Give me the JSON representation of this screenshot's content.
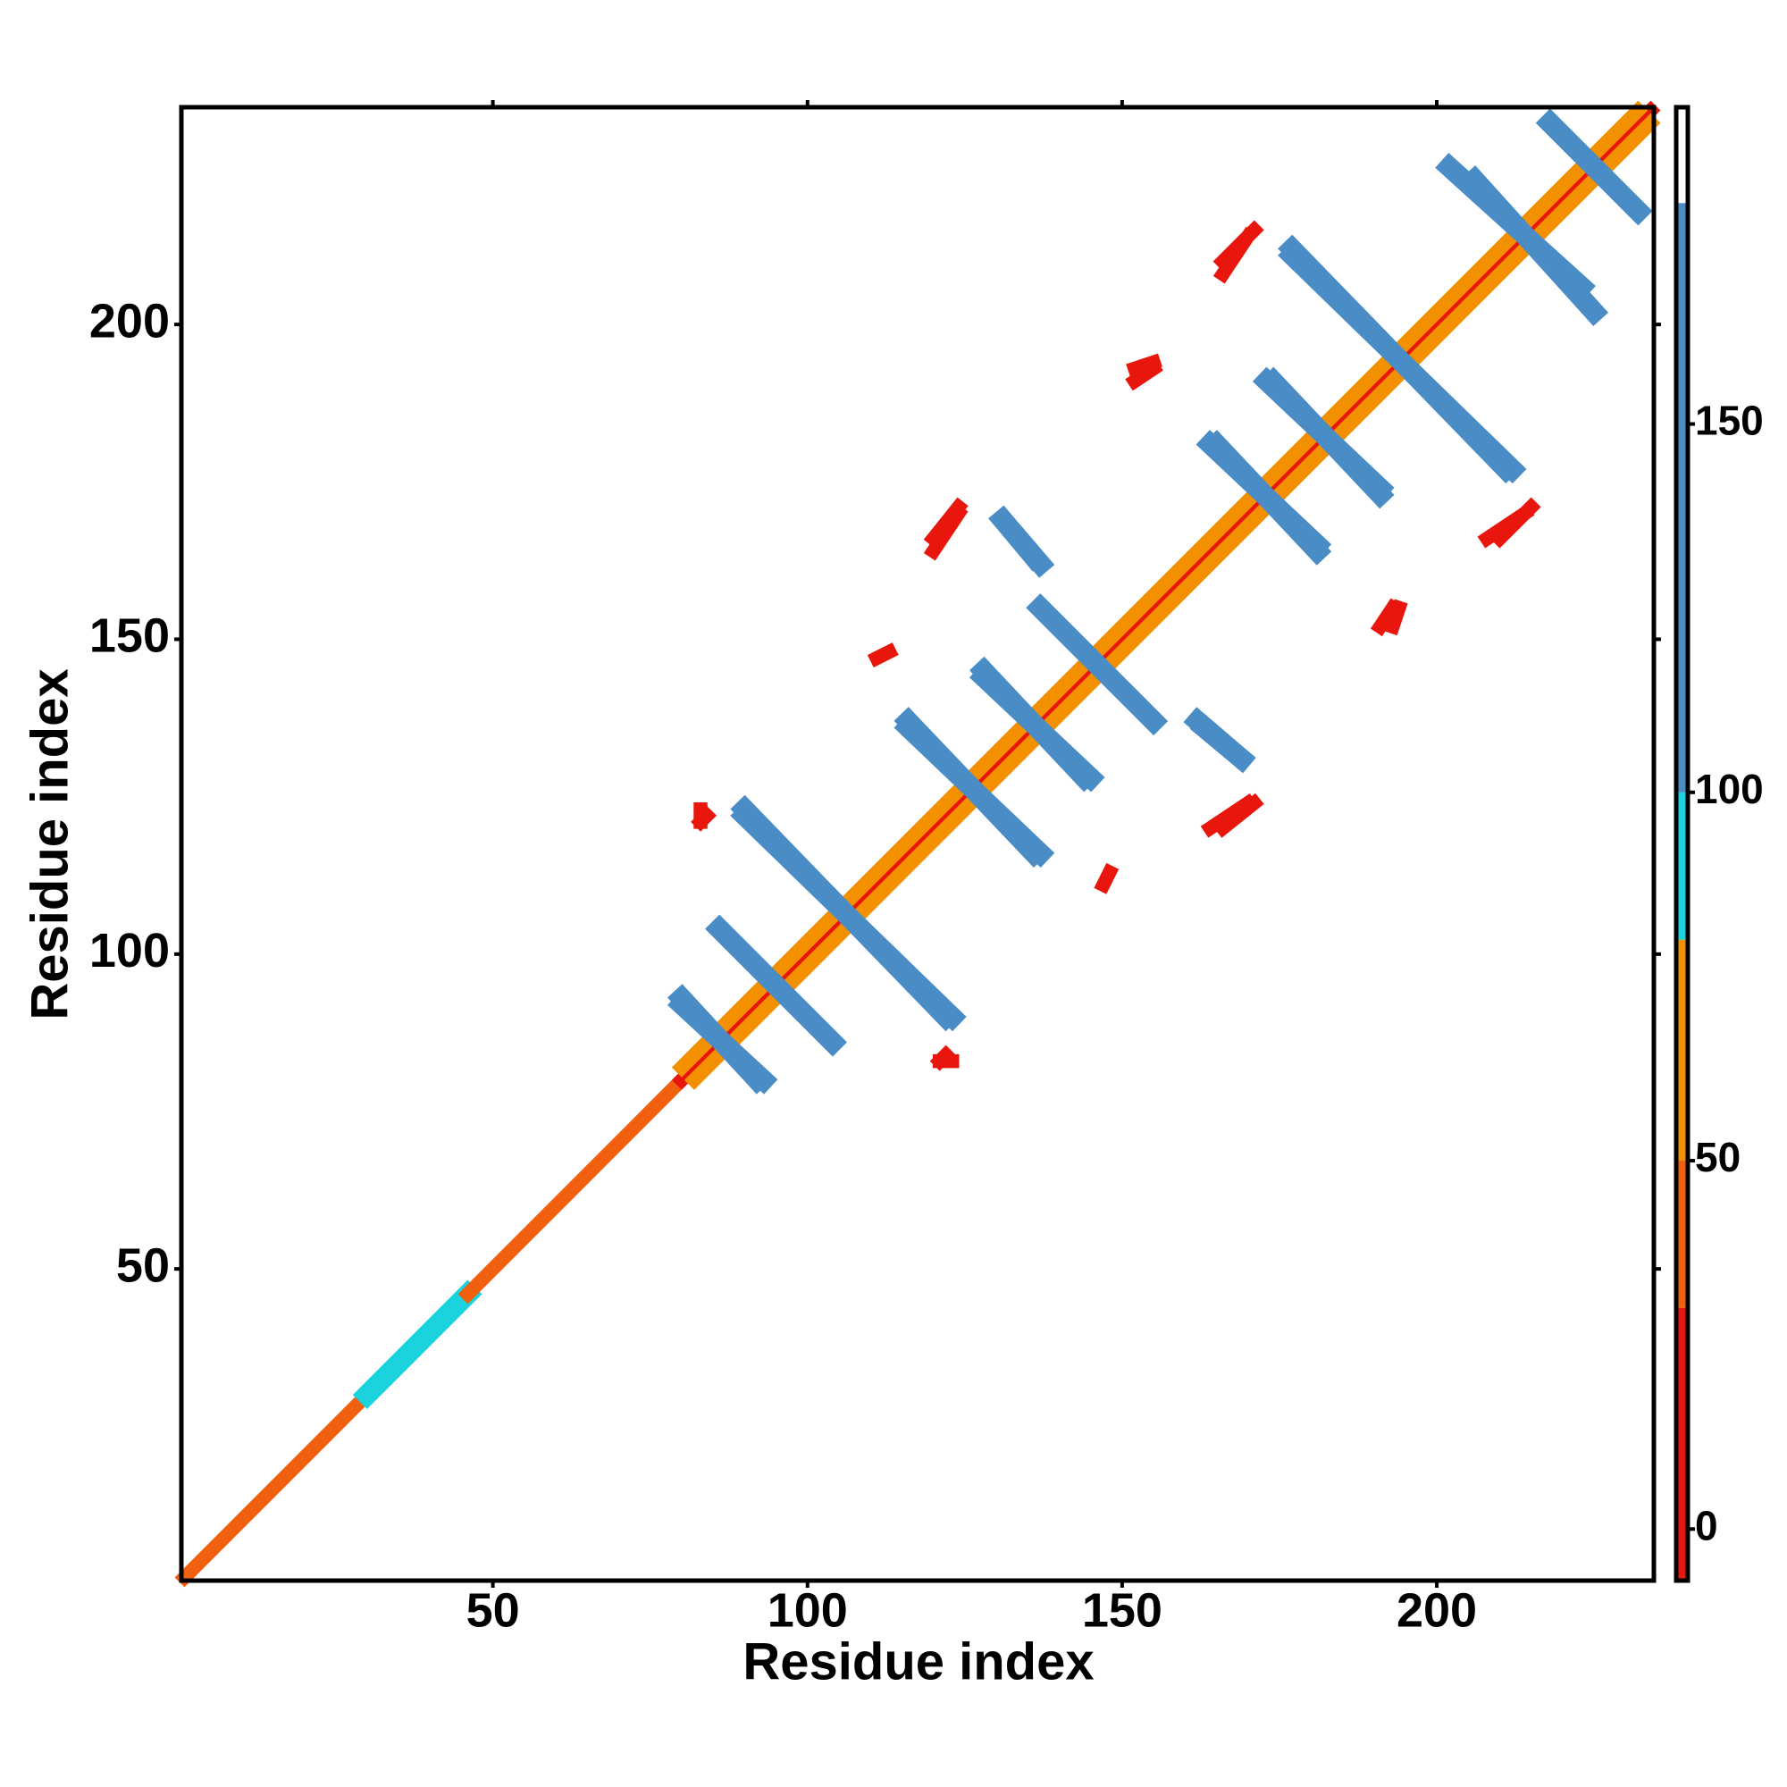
{
  "chart_data": {
    "type": "contact_map",
    "x_label": "Residue index",
    "y_label": "Residue index",
    "xlim": [
      0.5,
      234.5
    ],
    "ylim": [
      0.5,
      234.5
    ],
    "xticks": [
      50,
      100,
      150,
      200
    ],
    "yticks": [
      50,
      100,
      150,
      200
    ],
    "colorbar": {
      "lim": [
        -7,
        193
      ],
      "ticks": [
        0,
        50,
        100,
        150
      ],
      "bands": [
        {
          "range": [
            -7,
            30
          ],
          "color": "#e8160c"
        },
        {
          "range": [
            30,
            50
          ],
          "color": "#f0600e"
        },
        {
          "range": [
            50,
            80
          ],
          "color": "#f39000"
        },
        {
          "range": [
            80,
            100
          ],
          "color": "#1ad3df"
        },
        {
          "range": [
            100,
            180
          ],
          "color": "#4a8cc6"
        },
        {
          "range": [
            180,
            193
          ],
          "color": "#ffffff"
        }
      ]
    },
    "features": [
      {
        "x": [
          1,
          30
        ],
        "y": [
          1,
          30
        ],
        "value": 40
      },
      {
        "x": [
          30,
          46
        ],
        "y": [
          30,
          46
        ],
        "value": 90
      },
      {
        "x": [
          46,
          80
        ],
        "y": [
          46,
          80
        ],
        "value": 35
      },
      {
        "x": [
          80,
          234
        ],
        "y": [
          80,
          234
        ],
        "value": 10
      },
      {
        "x": [
          82,
          232
        ],
        "y": [
          80,
          230
        ],
        "value": 60
      },
      {
        "x": [
          80,
          232
        ],
        "y": [
          82,
          234
        ],
        "value": 60
      },
      {
        "x": [
          80,
          92
        ],
        "y": [
          93,
          80
        ],
        "value": 150
      },
      {
        "x": [
          86,
          104
        ],
        "y": [
          104,
          86
        ],
        "value": 150
      },
      {
        "x": [
          90,
          123
        ],
        "y": [
          122,
          90
        ],
        "value": 150
      },
      {
        "x": [
          116,
          136
        ],
        "y": [
          137,
          116
        ],
        "value": 150
      },
      {
        "x": [
          128,
          145
        ],
        "y": [
          144,
          128
        ],
        "value": 150
      },
      {
        "x": [
          137,
          155
        ],
        "y": [
          155,
          137
        ],
        "value": 150
      },
      {
        "x": [
          164,
          181
        ],
        "y": [
          181,
          165
        ],
        "value": 150
      },
      {
        "x": [
          173,
          191
        ],
        "y": [
          191,
          174
        ],
        "value": 150
      },
      {
        "x": [
          177,
          211
        ],
        "y": [
          212,
          177
        ],
        "value": 150
      },
      {
        "x": [
          202,
          223
        ],
        "y": [
          225,
          206
        ],
        "value": 150
      },
      {
        "x": [
          218,
          232
        ],
        "y": [
          232,
          218
        ],
        "value": 150
      },
      {
        "x": [
          131,
          136
        ],
        "y": [
          169,
          163
        ],
        "value": 150
      },
      {
        "x": [
          162,
          169
        ],
        "y": [
          137,
          131
        ],
        "value": 150
      },
      {
        "x": [
          120,
          124
        ],
        "y": [
          166,
          171
        ],
        "value": 5
      },
      {
        "x": [
          164,
          170
        ],
        "y": [
          120,
          124
        ],
        "value": 5
      },
      {
        "x": [
          166,
          171
        ],
        "y": [
          210,
          215
        ],
        "value": 5
      },
      {
        "x": [
          208,
          214
        ],
        "y": [
          166,
          170
        ],
        "value": 5
      },
      {
        "x": [
          147,
          148
        ],
        "y": [
          111,
          113
        ],
        "value": 5
      },
      {
        "x": [
          152,
          155
        ],
        "y": [
          193,
          194
        ],
        "value": 5
      },
      {
        "x": [
          191,
          193
        ],
        "y": [
          152,
          155
        ],
        "value": 5
      },
      {
        "x": [
          121,
          123
        ],
        "y": [
          83,
          83
        ],
        "value": 5
      },
      {
        "x": [
          83,
          84
        ],
        "y": [
          121,
          122
        ],
        "value": 5
      }
    ]
  }
}
